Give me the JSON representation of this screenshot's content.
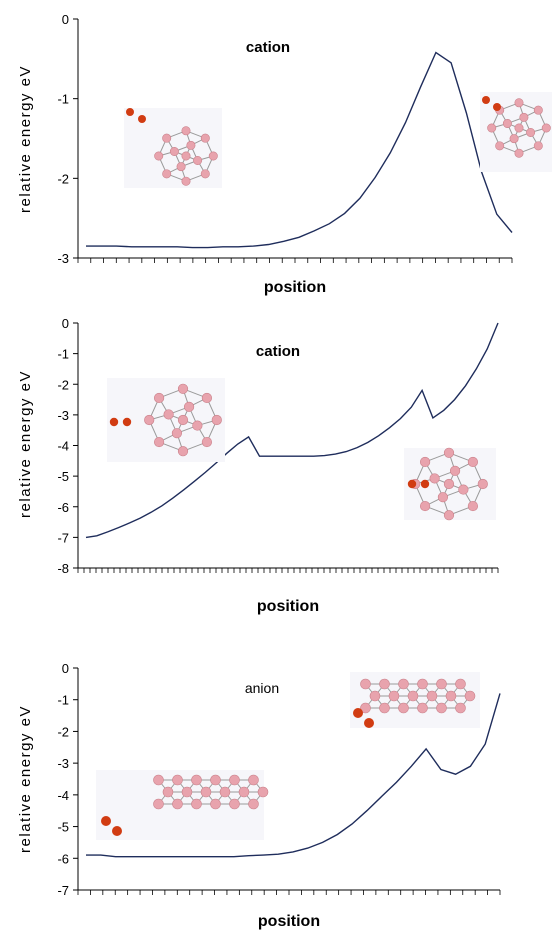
{
  "colors": {
    "line": "#1f2d5c",
    "atom_boron": "#e8a3ad",
    "atom_oxygen": "#d13c12",
    "bond": "#9a9a9a"
  },
  "chart_data": [
    {
      "type": "line",
      "xlabel": "position",
      "ylabel": "relative energy eV",
      "ylim": [
        -3,
        0
      ],
      "yticks": [
        "0",
        "-1",
        "-2",
        "-3"
      ],
      "annotation": "cation",
      "grid": false,
      "x_ticks": 34,
      "series": [
        {
          "values": [
            -2.85,
            -2.85,
            -2.85,
            -2.86,
            -2.86,
            -2.86,
            -2.86,
            -2.87,
            -2.87,
            -2.86,
            -2.86,
            -2.85,
            -2.83,
            -2.79,
            -2.74,
            -2.66,
            -2.57,
            -2.44,
            -2.25,
            -1.99,
            -1.68,
            -1.3,
            -0.85,
            -0.42,
            -0.55,
            -1.18,
            -1.92,
            -2.45,
            -2.68
          ]
        }
      ]
    },
    {
      "type": "line",
      "xlabel": "position",
      "ylabel": "relative energy eV",
      "ylim": [
        -8,
        0
      ],
      "yticks": [
        "0",
        "-1",
        "-2",
        "-3",
        "-4",
        "-5",
        "-6",
        "-7",
        "-8"
      ],
      "annotation": "cation",
      "grid": false,
      "x_ticks": 70,
      "series": [
        {
          "values": [
            -7.0,
            -6.95,
            -6.82,
            -6.68,
            -6.53,
            -6.37,
            -6.18,
            -5.97,
            -5.72,
            -5.45,
            -5.17,
            -4.88,
            -4.57,
            -4.25,
            -3.95,
            -3.72,
            -4.35,
            -4.35,
            -4.35,
            -4.35,
            -4.35,
            -4.35,
            -4.33,
            -4.28,
            -4.2,
            -4.07,
            -3.9,
            -3.68,
            -3.42,
            -3.12,
            -2.75,
            -2.2,
            -3.1,
            -2.85,
            -2.5,
            -2.05,
            -1.5,
            -0.85,
            0.0
          ]
        }
      ]
    },
    {
      "type": "line",
      "xlabel": "position",
      "ylabel": "relative energy eV",
      "ylim": [
        -7,
        0
      ],
      "yticks": [
        "0",
        "-1",
        "-2",
        "-3",
        "-4",
        "-5",
        "-6",
        "-7"
      ],
      "annotation": "anion",
      "grid": false,
      "x_ticks": 34,
      "series": [
        {
          "values": [
            -5.9,
            -5.9,
            -5.95,
            -5.95,
            -5.95,
            -5.95,
            -5.95,
            -5.95,
            -5.95,
            -5.95,
            -5.95,
            -5.92,
            -5.9,
            -5.87,
            -5.8,
            -5.68,
            -5.5,
            -5.25,
            -4.92,
            -4.5,
            -4.05,
            -3.6,
            -3.1,
            -2.55,
            -3.2,
            -3.35,
            -3.1,
            -2.4,
            -0.8
          ]
        }
      ]
    }
  ]
}
